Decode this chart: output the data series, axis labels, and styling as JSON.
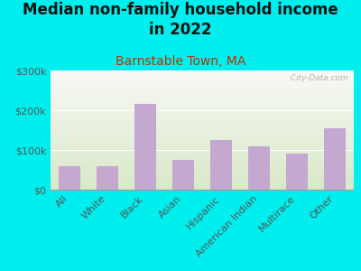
{
  "title": "Median non-family household income\nin 2022",
  "subtitle": "Barnstable Town, MA",
  "categories": [
    "All",
    "White",
    "Black",
    "Asian",
    "Hispanic",
    "American Indian",
    "Multirace",
    "Other"
  ],
  "values": [
    60000,
    58000,
    215000,
    75000,
    125000,
    110000,
    90000,
    155000
  ],
  "bar_color": "#c4a8d0",
  "background_outer": "#00eeee",
  "background_plot_top": "#f8f8f5",
  "background_plot_bottom": "#d8e8c8",
  "title_color": "#111111",
  "subtitle_color": "#bb3300",
  "tick_label_color": "#555555",
  "watermark": "  City-Data.com",
  "ylim": [
    0,
    300000
  ],
  "yticks": [
    0,
    100000,
    200000,
    300000
  ],
  "ytick_labels": [
    "$0",
    "$100k",
    "$200k",
    "$300k"
  ],
  "title_fontsize": 12,
  "subtitle_fontsize": 10,
  "tick_fontsize": 8
}
